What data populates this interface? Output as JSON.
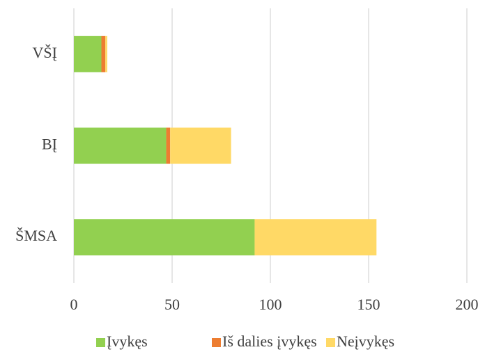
{
  "chart_data": {
    "type": "stacked-barh",
    "categories": [
      "ŠMSA",
      "BĮ",
      "VŠĮ"
    ],
    "series": [
      {
        "name": "Įvykęs",
        "color": "#92d050",
        "values": [
          92,
          47,
          14
        ]
      },
      {
        "name": "Iš dalies įvykęs",
        "color": "#ed7d31",
        "values": [
          0,
          2,
          2
        ]
      },
      {
        "name": "Neįvykęs",
        "color": "#ffd966",
        "values": [
          62,
          31,
          1
        ]
      }
    ],
    "xlim": [
      0,
      200
    ],
    "xticks": [
      0,
      50,
      100,
      150,
      200
    ],
    "grid": true,
    "legend": "bottom"
  }
}
